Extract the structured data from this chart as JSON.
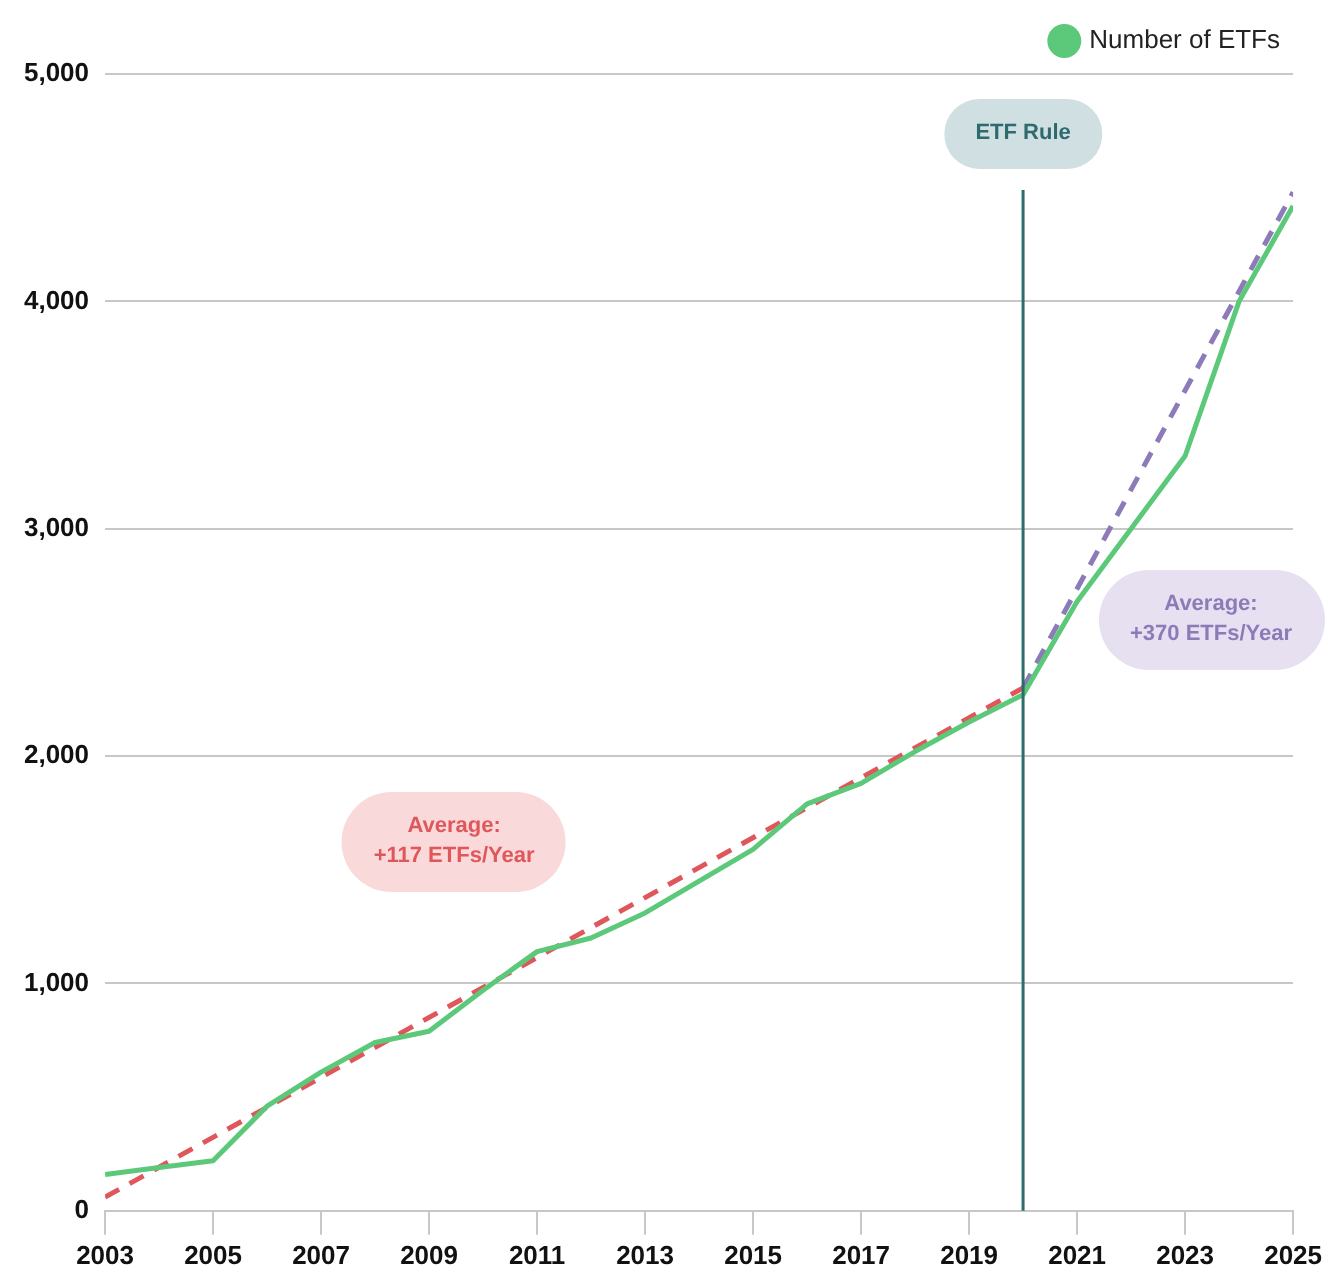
{
  "chart_data": {
    "type": "line",
    "x": [
      2003,
      2004,
      2005,
      2006,
      2007,
      2008,
      2009,
      2010,
      2011,
      2012,
      2013,
      2014,
      2015,
      2016,
      2017,
      2018,
      2019,
      2020,
      2021,
      2022,
      2023,
      2024,
      2025
    ],
    "series": [
      {
        "name": "Number of ETFs",
        "color": "#5cc97a",
        "values": [
          160,
          190,
          220,
          460,
          610,
          740,
          790,
          970,
          1140,
          1200,
          1310,
          1450,
          1590,
          1790,
          1880,
          2020,
          2150,
          2270,
          2680,
          3000,
          3320,
          4000,
          4420
        ]
      },
      {
        "color": "#e0575b",
        "line_style": "dashed",
        "x": [
          2003,
          2020
        ],
        "values": [
          60,
          2300
        ]
      },
      {
        "color": "#8c7bb8",
        "line_style": "dashed",
        "x": [
          2020,
          2025
        ],
        "values": [
          2300,
          4480
        ]
      }
    ],
    "xlim": [
      2003,
      2025
    ],
    "xticks": [
      2003,
      2005,
      2007,
      2009,
      2011,
      2013,
      2015,
      2017,
      2019,
      2021,
      2023,
      2025
    ],
    "ylim": [
      0,
      5000
    ],
    "yticks": [
      0,
      {
        "value": 1000,
        "label": "1,000"
      },
      {
        "value": 2000,
        "label": "2,000"
      },
      {
        "value": 3000,
        "label": "3,000"
      },
      {
        "value": 4000,
        "label": "4,000"
      },
      {
        "value": 5000,
        "label": "5,000"
      }
    ],
    "grid": "y",
    "legend": "top right",
    "marker": "none",
    "line_style": "solid",
    "ref_lines": [
      {
        "axis": "x",
        "value": 2020,
        "label": "ETF Rule",
        "color": "#2f6b6e"
      }
    ],
    "annotations": [
      "Average:\n+117 ETFs/Year",
      "Average:\n+370 ETFs/Year"
    ]
  }
}
